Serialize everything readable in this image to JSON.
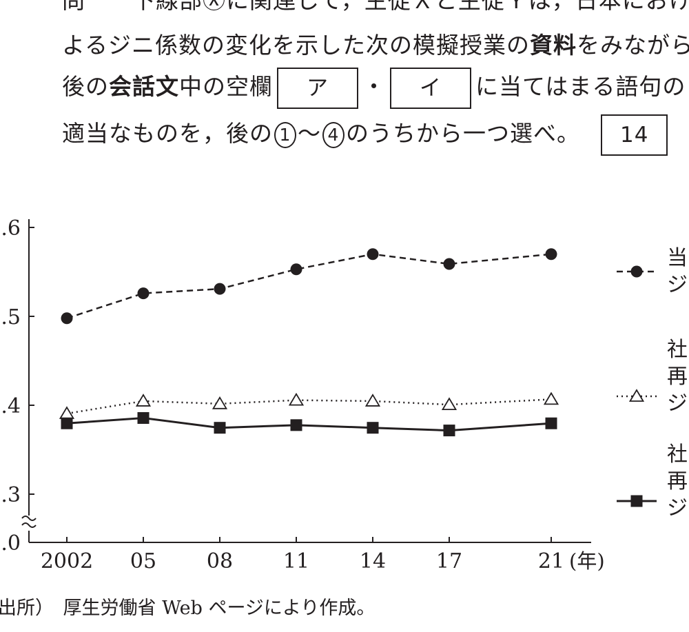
{
  "question": {
    "line0": "問　　下線部Ⓧに関連して，生徒Ｘと生徒Ｙは，日本における",
    "line1_pre": "よるジニ係数の変化を示した次の模擬授業の",
    "line1_bold": "資料",
    "line1_post": "をみながら",
    "line2_pre": "後の",
    "line2_bold": "会話文",
    "line2_mid": "中の空欄",
    "blank_a": "ア",
    "dot": "・",
    "blank_b": "イ",
    "line2_post": "に当てはまる語句の",
    "line3_pre": "適当なものを，後の",
    "circle_1": "1",
    "tilde": "～",
    "circle_4": "4",
    "line3_post": "のうちから一つ選べ。",
    "answer_box": "14"
  },
  "chart_data": {
    "type": "line",
    "categories": [
      "2002",
      "05",
      "08",
      "11",
      "14",
      "17",
      "21"
    ],
    "x_unit": "(年)",
    "y_ticks": [
      ".6",
      ".5",
      ".4",
      ".3",
      ".0"
    ],
    "y_axis_break": true,
    "series": [
      {
        "name": "当",
        "name_line2": "ジ",
        "marker": "filled-circle",
        "line_style": "dashed",
        "values": [
          0.498,
          0.526,
          0.531,
          0.553,
          0.57,
          0.559,
          0.57
        ]
      },
      {
        "name": "社",
        "name_line2": "再",
        "name_line3": "ジ",
        "marker": "open-triangle",
        "line_style": "dotted",
        "values": [
          0.391,
          0.405,
          0.402,
          0.406,
          0.405,
          0.401,
          0.407
        ]
      },
      {
        "name": "社",
        "name_line2": "再",
        "name_line3": "ジ",
        "marker": "filled-square",
        "line_style": "solid",
        "values": [
          0.38,
          0.386,
          0.375,
          0.378,
          0.375,
          0.372,
          0.38
        ]
      }
    ]
  },
  "source_note": "出所）　厚生労働省 Web ページにより作成。",
  "colors": {
    "ink": "#231f20",
    "background": "#ffffff"
  }
}
